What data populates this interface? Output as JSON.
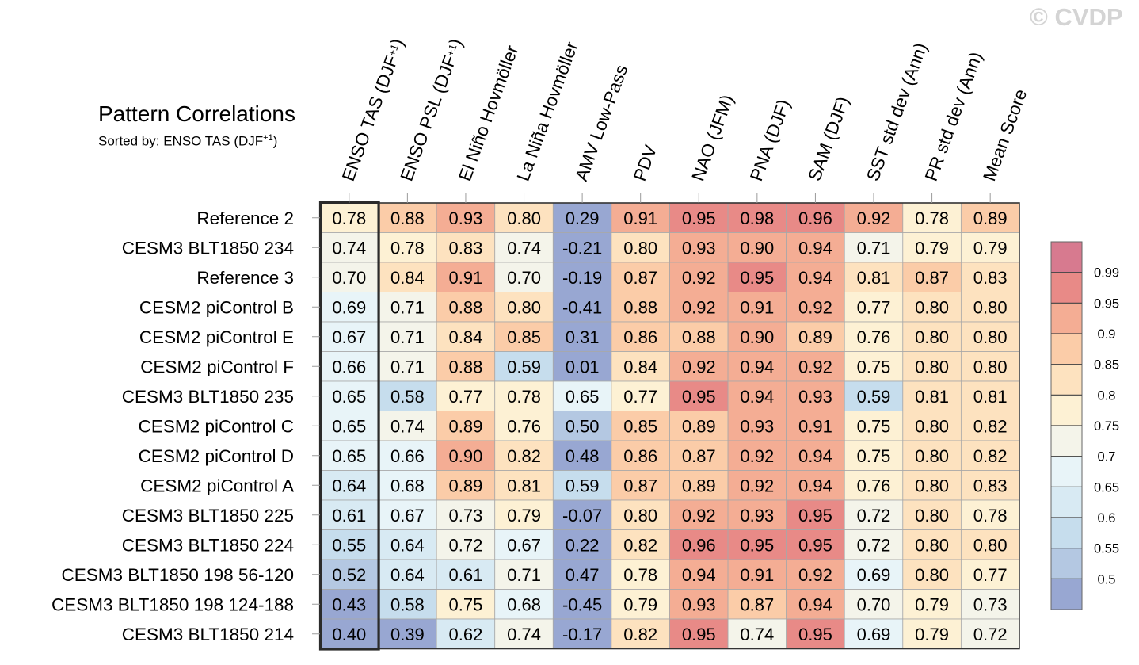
{
  "header": {
    "title": "Pattern Correlations",
    "subtitle_prefix": "Sorted by: ENSO TAS (DJF",
    "subtitle_sup": "+1",
    "subtitle_suffix": ")"
  },
  "watermark": "© CVDP",
  "chart_data": {
    "type": "heatmap",
    "title": "Pattern Correlations",
    "columns": [
      {
        "label": "ENSO TAS (DJF",
        "sup": "+1",
        "tail": ")"
      },
      {
        "label": "ENSO PSL (DJF",
        "sup": "+1",
        "tail": ")"
      },
      {
        "label": "El Niño Hovmöller",
        "sup": "",
        "tail": ""
      },
      {
        "label": "La Niña Hovmöller",
        "sup": "",
        "tail": ""
      },
      {
        "label": "AMV Low-Pass",
        "sup": "",
        "tail": ""
      },
      {
        "label": "PDV",
        "sup": "",
        "tail": ""
      },
      {
        "label": "NAO (JFM)",
        "sup": "",
        "tail": ""
      },
      {
        "label": "PNA (DJF)",
        "sup": "",
        "tail": ""
      },
      {
        "label": "SAM (DJF)",
        "sup": "",
        "tail": ""
      },
      {
        "label": "SST std dev (Ann)",
        "sup": "",
        "tail": ""
      },
      {
        "label": "PR std dev (Ann)",
        "sup": "",
        "tail": ""
      },
      {
        "label": "Mean Score",
        "sup": "",
        "tail": ""
      }
    ],
    "rows": [
      "Reference 2",
      "CESM3 BLT1850 234",
      "Reference 3",
      "CESM2 piControl B",
      "CESM2 piControl E",
      "CESM2 piControl F",
      "CESM3 BLT1850 235",
      "CESM2 piControl C",
      "CESM2 piControl D",
      "CESM2 piControl A",
      "CESM3 BLT1850 225",
      "CESM3 BLT1850 224",
      "CESM3 BLT1850 198 56-120",
      "CESM3 BLT1850 198 124-188",
      "CESM3 BLT1850 214"
    ],
    "values": [
      [
        "0.78",
        "0.88",
        "0.93",
        "0.80",
        "0.29",
        "0.91",
        "0.95",
        "0.98",
        "0.96",
        "0.92",
        "0.78",
        "0.89"
      ],
      [
        "0.74",
        "0.78",
        "0.83",
        "0.74",
        "-0.21",
        "0.80",
        "0.93",
        "0.90",
        "0.94",
        "0.71",
        "0.79",
        "0.79"
      ],
      [
        "0.70",
        "0.84",
        "0.91",
        "0.70",
        "-0.19",
        "0.87",
        "0.92",
        "0.95",
        "0.94",
        "0.81",
        "0.87",
        "0.83"
      ],
      [
        "0.69",
        "0.71",
        "0.88",
        "0.80",
        "-0.41",
        "0.88",
        "0.92",
        "0.91",
        "0.92",
        "0.77",
        "0.80",
        "0.80"
      ],
      [
        "0.67",
        "0.71",
        "0.84",
        "0.85",
        "0.31",
        "0.86",
        "0.88",
        "0.90",
        "0.89",
        "0.76",
        "0.80",
        "0.80"
      ],
      [
        "0.66",
        "0.71",
        "0.88",
        "0.59",
        "0.01",
        "0.84",
        "0.92",
        "0.94",
        "0.92",
        "0.75",
        "0.80",
        "0.80"
      ],
      [
        "0.65",
        "0.58",
        "0.77",
        "0.78",
        "0.65",
        "0.77",
        "0.95",
        "0.94",
        "0.93",
        "0.59",
        "0.81",
        "0.81"
      ],
      [
        "0.65",
        "0.74",
        "0.89",
        "0.76",
        "0.50",
        "0.85",
        "0.89",
        "0.93",
        "0.91",
        "0.75",
        "0.80",
        "0.82"
      ],
      [
        "0.65",
        "0.66",
        "0.90",
        "0.82",
        "0.48",
        "0.86",
        "0.87",
        "0.92",
        "0.94",
        "0.75",
        "0.80",
        "0.82"
      ],
      [
        "0.64",
        "0.68",
        "0.89",
        "0.81",
        "0.59",
        "0.87",
        "0.89",
        "0.92",
        "0.94",
        "0.76",
        "0.80",
        "0.83"
      ],
      [
        "0.61",
        "0.67",
        "0.73",
        "0.79",
        "-0.07",
        "0.80",
        "0.92",
        "0.93",
        "0.95",
        "0.72",
        "0.80",
        "0.78"
      ],
      [
        "0.55",
        "0.64",
        "0.72",
        "0.67",
        "0.22",
        "0.82",
        "0.96",
        "0.95",
        "0.95",
        "0.72",
        "0.80",
        "0.80"
      ],
      [
        "0.52",
        "0.64",
        "0.61",
        "0.71",
        "0.47",
        "0.78",
        "0.94",
        "0.91",
        "0.92",
        "0.69",
        "0.80",
        "0.77"
      ],
      [
        "0.43",
        "0.58",
        "0.75",
        "0.68",
        "-0.45",
        "0.79",
        "0.93",
        "0.87",
        "0.94",
        "0.70",
        "0.79",
        "0.73"
      ],
      [
        "0.40",
        "0.39",
        "0.62",
        "0.74",
        "-0.17",
        "0.82",
        "0.95",
        "0.74",
        "0.95",
        "0.69",
        "0.79",
        "0.72"
      ]
    ],
    "highlight_column": 0,
    "colorbar": {
      "levels": [
        "0.5",
        "0.55",
        "0.6",
        "0.65",
        "0.7",
        "0.75",
        "0.8",
        "0.85",
        "0.9",
        "0.95",
        "0.99"
      ],
      "thresholds": [
        0.5,
        0.55,
        0.6,
        0.65,
        0.7,
        0.75,
        0.8,
        0.85,
        0.9,
        0.95,
        0.99
      ],
      "colors": [
        "#98a7d2",
        "#b4c8e2",
        "#c6dded",
        "#d8eaf3",
        "#e8f4f8",
        "#f4f4ea",
        "#fdf1d4",
        "#fde2bf",
        "#fbcca8",
        "#f4ad94",
        "#e88a87",
        "#d77a8f"
      ]
    }
  }
}
